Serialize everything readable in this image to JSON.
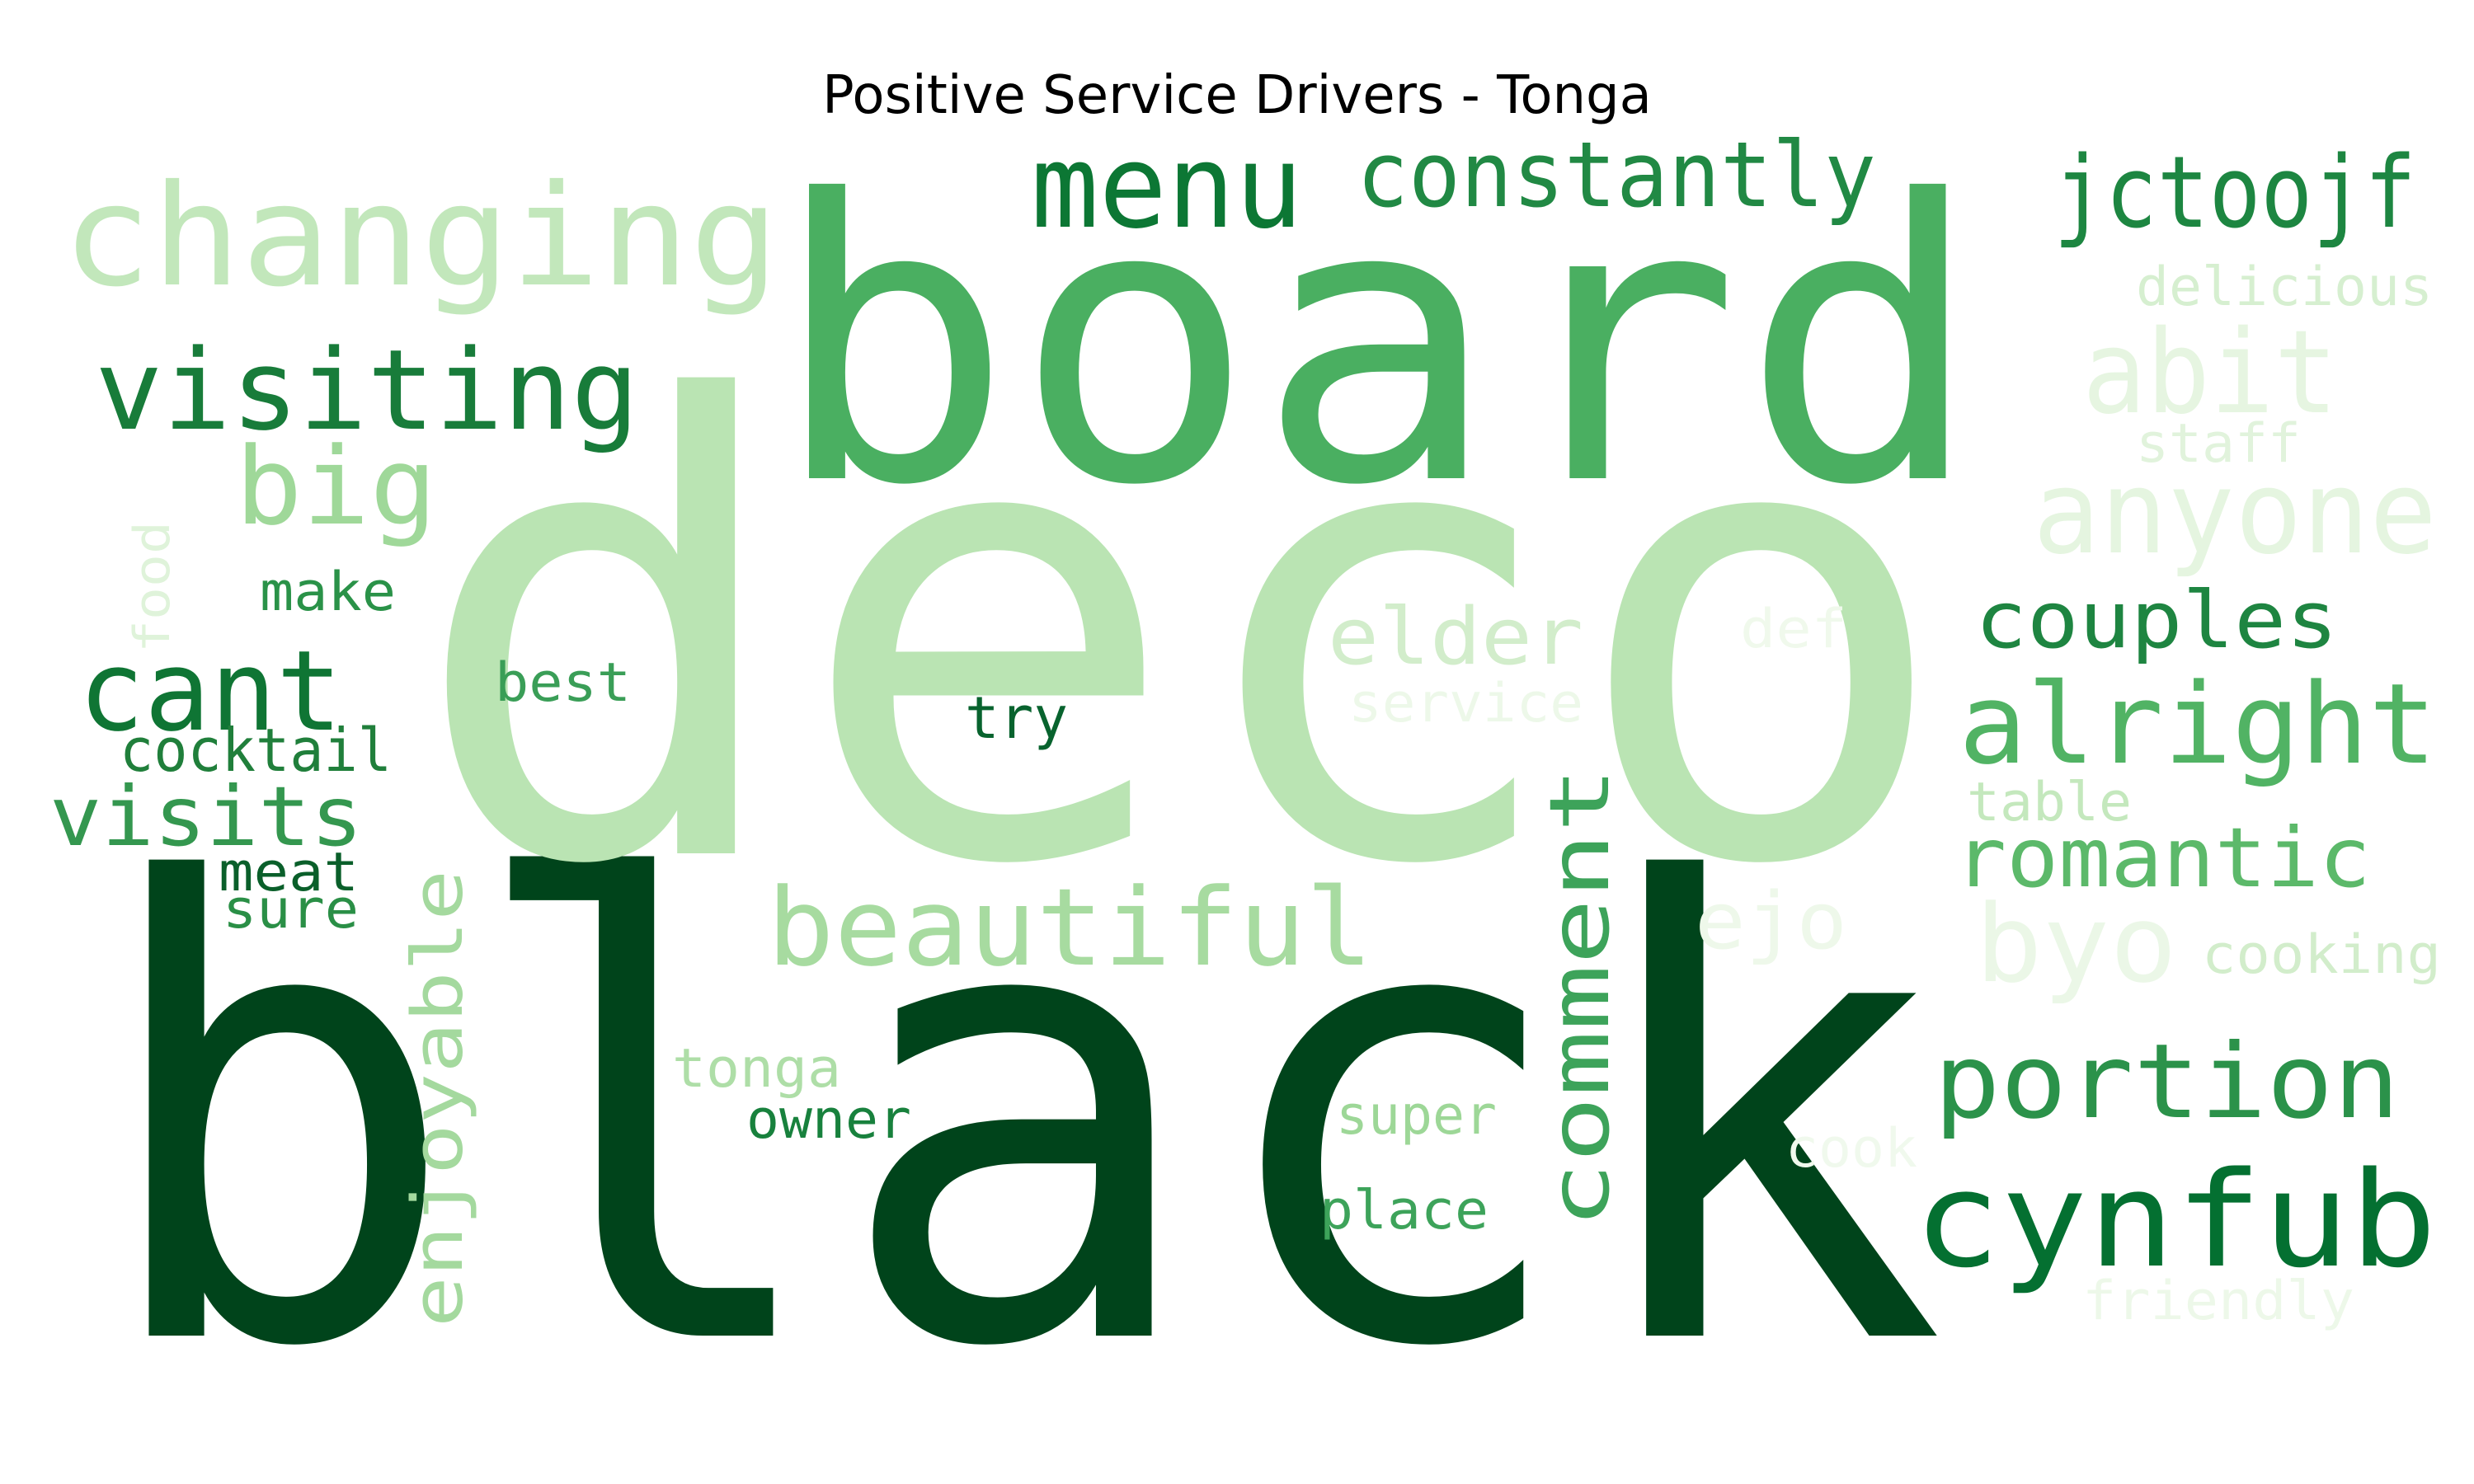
{
  "chart_data": {
    "type": "wordcloud",
    "title": "Positive Service Drivers - Tonga",
    "colormap": "Greens",
    "words": [
      {
        "text": "black",
        "shade": "#00441b"
      },
      {
        "text": "deco",
        "shade": "#bae4b3"
      },
      {
        "text": "board",
        "shade": "#4aaf61"
      },
      {
        "text": "changing",
        "shade": "#c2e7bb"
      },
      {
        "text": "menu",
        "shade": "#0c7734"
      },
      {
        "text": "constantly",
        "shade": "#218944"
      },
      {
        "text": "jctoojf",
        "shade": "#1d8641"
      },
      {
        "text": "delicious",
        "shade": "#d6efd0"
      },
      {
        "text": "abit",
        "shade": "#e6f5e1"
      },
      {
        "text": "staff",
        "shade": "#e1f3dc"
      },
      {
        "text": "anyone",
        "shade": "#e5f5e0"
      },
      {
        "text": "visiting",
        "shade": "#187c3a"
      },
      {
        "text": "big",
        "shade": "#9fd899"
      },
      {
        "text": "food",
        "shade": "#dff3da"
      },
      {
        "text": "make",
        "shade": "#2a9248"
      },
      {
        "text": "cant",
        "shade": "#0f7534"
      },
      {
        "text": "best",
        "shade": "#3a9e57"
      },
      {
        "text": "cocktail",
        "shade": "#207f3b"
      },
      {
        "text": "visits",
        "shade": "#34974f"
      },
      {
        "text": "meat",
        "shade": "#0a5f2a"
      },
      {
        "text": "sure",
        "shade": "#2a8f46"
      },
      {
        "text": "try",
        "shade": "#08632e"
      },
      {
        "text": "elder",
        "shade": "#d2edcb"
      },
      {
        "text": "service",
        "shade": "#edf8e9"
      },
      {
        "text": "def",
        "shade": "#f0f9ec"
      },
      {
        "text": "couples",
        "shade": "#1e8541"
      },
      {
        "text": "alright",
        "shade": "#51b364"
      },
      {
        "text": "table",
        "shade": "#c4e8bd"
      },
      {
        "text": "romantic",
        "shade": "#5cb96a"
      },
      {
        "text": "comment",
        "shade": "#3da35a"
      },
      {
        "text": "beautiful",
        "shade": "#a7dba0"
      },
      {
        "text": "ejo",
        "shade": "#eef8ea"
      },
      {
        "text": "byo",
        "shade": "#ebf7e7"
      },
      {
        "text": "cooking",
        "shade": "#d2edcb"
      },
      {
        "text": "enjoyable",
        "shade": "#a4d99e"
      },
      {
        "text": "tonga",
        "shade": "#aedea7"
      },
      {
        "text": "owner",
        "shade": "#18813d"
      },
      {
        "text": "super",
        "shade": "#9dd797"
      },
      {
        "text": "place",
        "shade": "#3da35a"
      },
      {
        "text": "cook",
        "shade": "#f0f9ed"
      },
      {
        "text": "portion",
        "shade": "#2b924a"
      },
      {
        "text": "cynfub",
        "shade": "#047031"
      },
      {
        "text": "friendly",
        "shade": "#edf8e9"
      }
    ]
  }
}
